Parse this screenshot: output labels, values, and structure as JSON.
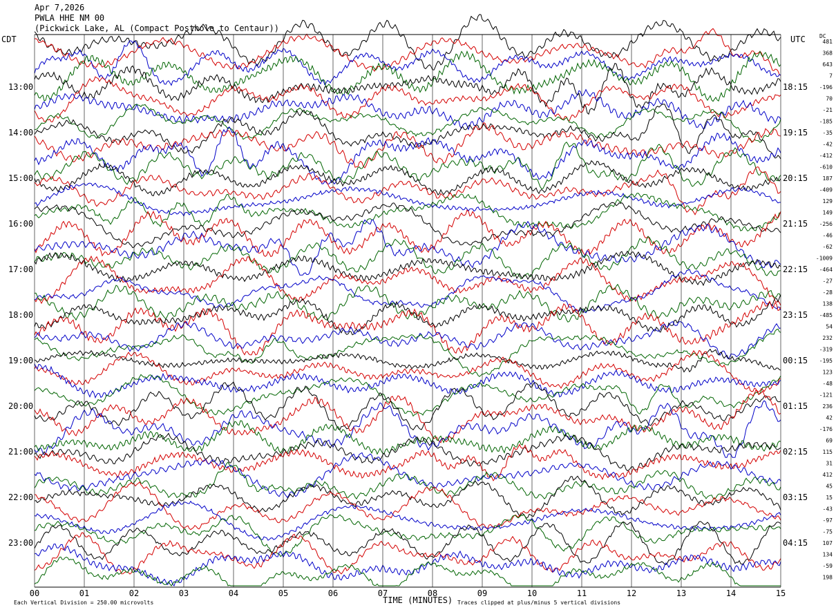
{
  "header": {
    "date": "Apr 7,2026",
    "station": "PWLA HHE NM 00",
    "location": "(Pickwick Lake, AL (Compact Posthole to Centaur))"
  },
  "labels": {
    "left_tz": "CDT",
    "right_tz": "UTC",
    "dc": "DC",
    "xlabel": "TIME (MINUTES)",
    "scale_note": "Each Vertical Division =  250.00 microvolts",
    "clip_note": "Traces clipped at plus/minus 5 vertical divisions"
  },
  "colors": {
    "trace_cycle": [
      "#000000",
      "#d40000",
      "#0000c8",
      "#006400"
    ],
    "grid": "#000000"
  },
  "chart_data": {
    "type": "line",
    "title": "PWLA HHE NM 00",
    "xlabel": "TIME (MINUTES)",
    "xlim": [
      0,
      15
    ],
    "x_ticks": [
      "00",
      "01",
      "02",
      "03",
      "04",
      "05",
      "06",
      "07",
      "08",
      "09",
      "10",
      "11",
      "12",
      "13",
      "14",
      "15"
    ],
    "left_time_labels": [
      "13:00",
      "14:00",
      "15:00",
      "16:00",
      "17:00",
      "18:00",
      "19:00",
      "20:00",
      "21:00",
      "22:00",
      "23:00"
    ],
    "right_time_labels": [
      "18:15",
      "19:15",
      "20:15",
      "21:15",
      "22:15",
      "23:15",
      "00:15",
      "01:15",
      "02:15",
      "03:15",
      "04:15"
    ],
    "dc_offsets": [
      481,
      368,
      643,
      7,
      -196,
      70,
      -21,
      -185,
      -35,
      -42,
      -412,
      -610,
      187,
      -409,
      129,
      149,
      -256,
      -46,
      -62,
      -1009,
      -464,
      -27,
      -28,
      138,
      -485,
      54,
      232,
      -319,
      -195,
      123,
      -48,
      -121,
      236,
      42,
      -176,
      69,
      115,
      31,
      412,
      45,
      15,
      -43,
      -97,
      -75,
      107,
      134,
      -59,
      198
    ],
    "traces_per_hour": 4,
    "vertical_division_microvolts": 250.0,
    "clip_divisions": 5,
    "grid": true,
    "legend": "none"
  }
}
